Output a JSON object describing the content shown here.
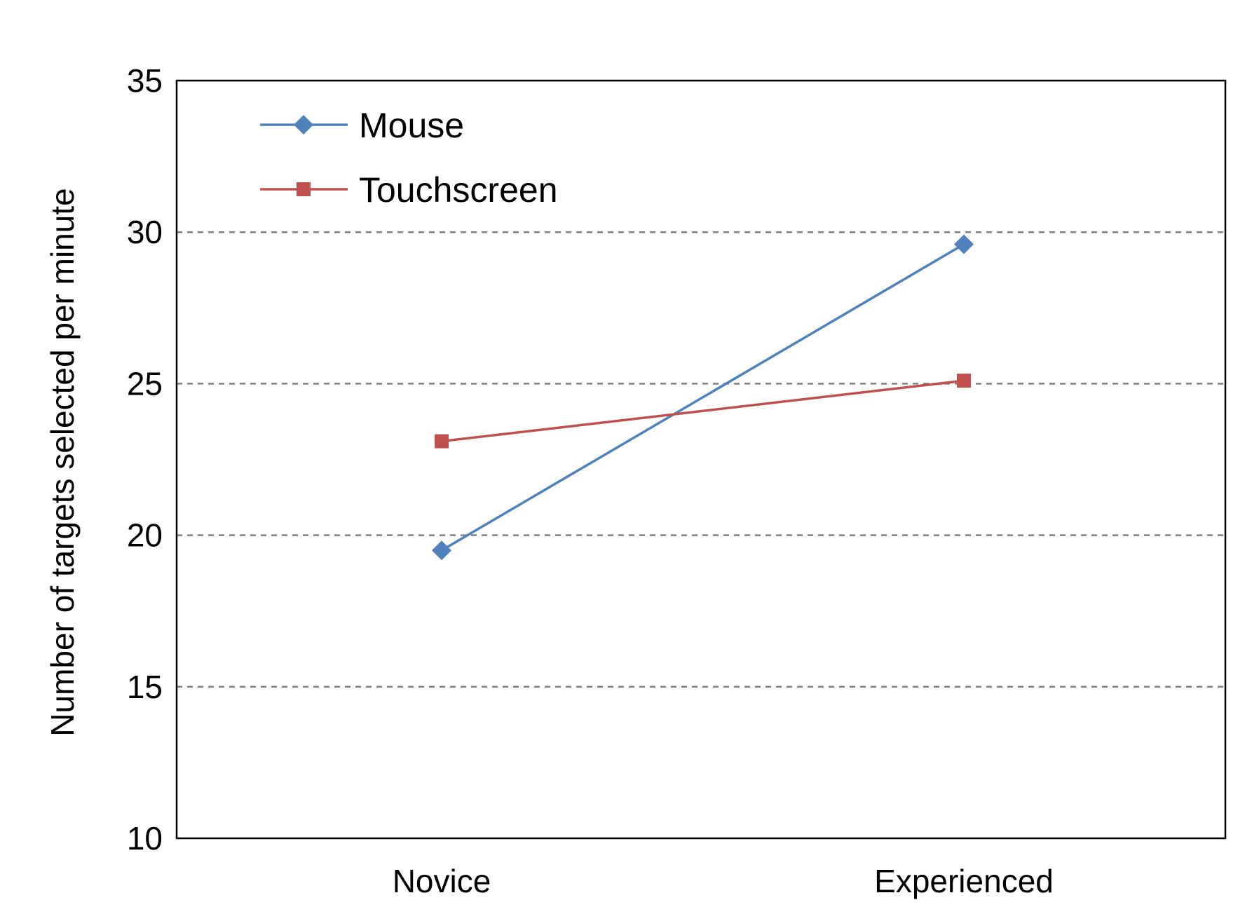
{
  "chart_data": {
    "type": "line",
    "title": "",
    "xlabel": "",
    "ylabel": "Number of targets selected per minute",
    "categories": [
      "Novice",
      "Experienced"
    ],
    "ylim": [
      10,
      35
    ],
    "yticks": [
      10,
      15,
      20,
      25,
      30,
      35
    ],
    "grid": "horizontal dashed at 15, 20, 25, 30",
    "legend_position": "top-left",
    "series": [
      {
        "name": "Mouse",
        "values": [
          19.5,
          29.6
        ],
        "color": "#4F81BD",
        "marker": "diamond"
      },
      {
        "name": "Touchscreen",
        "values": [
          23.1,
          25.1
        ],
        "color": "#C0504D",
        "marker": "square"
      }
    ]
  }
}
